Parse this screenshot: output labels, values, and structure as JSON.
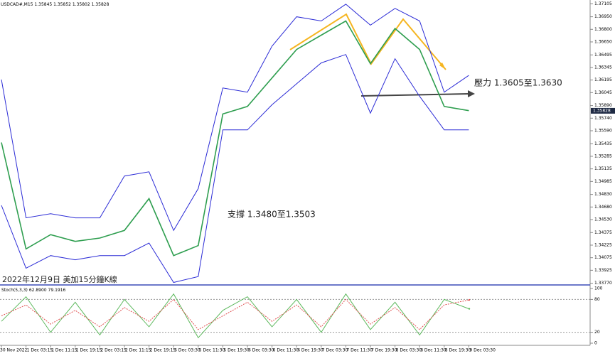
{
  "chart_data": [
    {
      "type": "line",
      "title": "USDCAD#,M15",
      "ohlc": [
        1.35845,
        1.35852,
        1.35802,
        1.35828
      ],
      "last_price": 1.35828,
      "annotations": [
        "壓力 1.3605至1.3630",
        "支撐 1.3480至1.3503",
        "2022年12月9日 美加15分鐘K線"
      ],
      "categories": [
        "30 Nov 2022",
        "1 Dec 03:15",
        "1 Dec 11:15",
        "1 Dec 19:15",
        "2 Dec 03:15",
        "2 Dec 11:15",
        "2 Dec 19:15",
        "5 Dec 03:30",
        "5 Dec 11:30",
        "5 Dec 19:30",
        "6 Dec 03:30",
        "6 Dec 11:30",
        "6 Dec 19:30",
        "7 Dec 03:30",
        "7 Dec 11:30",
        "7 Dec 19:30",
        "8 Dec 03:30",
        "8 Dec 11:30",
        "8 Dec 19:30",
        "9 Dec 03:30"
      ],
      "series": [
        {
          "color": "#2e9e4f",
          "values": [
            1.3545,
            1.3418,
            1.3435,
            1.3427,
            1.3431,
            1.344,
            1.3478,
            1.341,
            1.3422,
            1.3579,
            1.3588,
            1.3622,
            1.3656,
            1.3673,
            1.369,
            1.3639,
            1.3681,
            1.3656,
            1.3588,
            1.3583
          ]
        },
        {
          "color": "#2b2bd6",
          "values": [
            1.362,
            1.3455,
            1.346,
            1.3455,
            1.3455,
            1.3505,
            1.351,
            1.344,
            1.349,
            1.361,
            1.3605,
            1.366,
            1.3695,
            1.369,
            1.371,
            1.3685,
            1.3705,
            1.369,
            1.3605,
            1.3625
          ]
        },
        {
          "color": "#2b2bd6",
          "values": [
            1.347,
            1.3395,
            1.341,
            1.3405,
            1.341,
            1.341,
            1.3425,
            1.3378,
            1.3385,
            1.356,
            1.356,
            1.359,
            1.3615,
            1.364,
            1.365,
            1.358,
            1.3645,
            1.36,
            1.356,
            1.356
          ]
        }
      ],
      "ylim": [
        1.3375,
        1.3715
      ],
      "yticks": [
        1.37105,
        {
          "value": 1.3695,
          "label": "1.36950"
        },
        {
          "value": 1.368,
          "label": "1.36800"
        },
        {
          "value": 1.3665,
          "label": "1.36650"
        },
        1.36495,
        1.36345,
        1.36195,
        1.36045,
        {
          "value": 1.3589,
          "label": "1.35890"
        },
        {
          "value": 1.3574,
          "label": "1.35740"
        },
        {
          "value": 1.3559,
          "label": "1.35590"
        },
        1.35435,
        1.35285,
        1.35135,
        1.34985,
        {
          "value": 1.3483,
          "label": "1.34830"
        },
        {
          "value": 1.3468,
          "label": "1.34680"
        },
        {
          "value": 1.3453,
          "label": "1.34530"
        },
        1.34375,
        1.34225,
        1.34075,
        1.33925,
        {
          "value": 1.3377,
          "label": "1.33770"
        }
      ]
    },
    {
      "type": "line",
      "title": "Stoch(5,3,3)",
      "readout": [
        62.89,
        79.1916
      ],
      "value_labels": [
        "62.8900",
        "79.1916"
      ],
      "series": [
        {
          "color": "#5cb85c",
          "values": [
            40,
            85,
            20,
            75,
            15,
            80,
            30,
            90,
            10,
            60,
            85,
            30,
            80,
            20,
            90,
            25,
            75,
            15,
            80,
            63
          ]
        },
        {
          "color": "#e05050",
          "values": [
            50,
            70,
            35,
            60,
            30,
            65,
            40,
            80,
            25,
            50,
            75,
            40,
            70,
            30,
            80,
            35,
            65,
            25,
            70,
            79
          ]
        }
      ],
      "ylim": [
        0,
        100
      ],
      "yticks": [
        100,
        80,
        20,
        0
      ]
    }
  ]
}
